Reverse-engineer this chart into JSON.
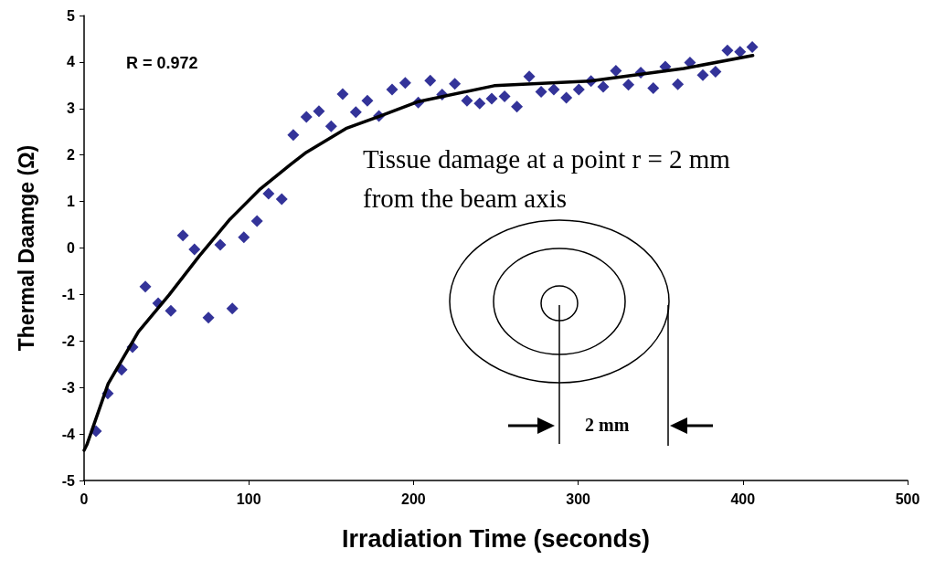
{
  "chart_data": {
    "type": "scatter",
    "xlabel": "Irradiation Time (seconds)",
    "ylabel": "Thermal Daamge (Ω)",
    "xlim": [
      0,
      500
    ],
    "xticks": [
      0,
      100,
      200,
      300,
      400,
      500
    ],
    "ylim": [
      -5,
      5
    ],
    "yticks": [
      -5,
      -4,
      -3,
      -2,
      -1,
      0,
      1,
      2,
      3,
      4,
      5
    ],
    "grid": false,
    "marker": "diamond",
    "series": [
      {
        "color": "#000080",
        "x": [
          7.2,
          14.4,
          22.8,
          29.4,
          37.2,
          45,
          52.7,
          60,
          67,
          75.5,
          82.7,
          90,
          97,
          105,
          112,
          120,
          127,
          135,
          142.6,
          150,
          157,
          165,
          172,
          179,
          187,
          195,
          202.9,
          210.2,
          217.4,
          225.1,
          232.5,
          240.2,
          247.5,
          255.3,
          262.8,
          270.3,
          277.5,
          285.2,
          292.8,
          300.4,
          307.8,
          315.2,
          322.9,
          330.5,
          338,
          345.6,
          352.9,
          360.5,
          367.9,
          375.7,
          383.4,
          390.6,
          398.3,
          405.7
        ],
        "values": [
          -3.94,
          -3.13,
          -2.62,
          -2.13,
          -0.83,
          -1.19,
          -1.35,
          0.27,
          -0.03,
          -1.5,
          0.07,
          -1.3,
          0.23,
          0.58,
          1.17,
          1.05,
          2.43,
          2.82,
          2.94,
          2.62,
          3.31,
          2.92,
          3.17,
          2.84,
          3.41,
          3.55,
          3.13,
          3.6,
          3.3,
          3.53,
          3.17,
          3.11,
          3.21,
          3.26,
          3.04,
          3.69,
          3.36,
          3.41,
          3.23,
          3.41,
          3.59,
          3.47,
          3.81,
          3.51,
          3.77,
          3.44,
          3.9,
          3.52,
          3.99,
          3.72,
          3.79,
          4.25,
          4.22,
          4.32
        ]
      },
      {
        "type": "line",
        "color": "#000000",
        "marker": "none",
        "line_style": "solid",
        "x": [
          0,
          1.7,
          14.6,
          33,
          51.6,
          70,
          88.6,
          107,
          125.5,
          135,
          159,
          180,
          203,
          249,
          307,
          364,
          406
        ],
        "values": [
          -4.35,
          -4.23,
          -2.92,
          -1.8,
          -1.01,
          -0.17,
          0.62,
          1.27,
          1.8,
          2.06,
          2.57,
          2.84,
          3.15,
          3.49,
          3.59,
          3.86,
          4.14
        ]
      }
    ],
    "annotations": [
      "R = 0.972",
      "Tissue damage at a point r = 2 mm from the beam axis",
      "2 mm"
    ]
  }
}
